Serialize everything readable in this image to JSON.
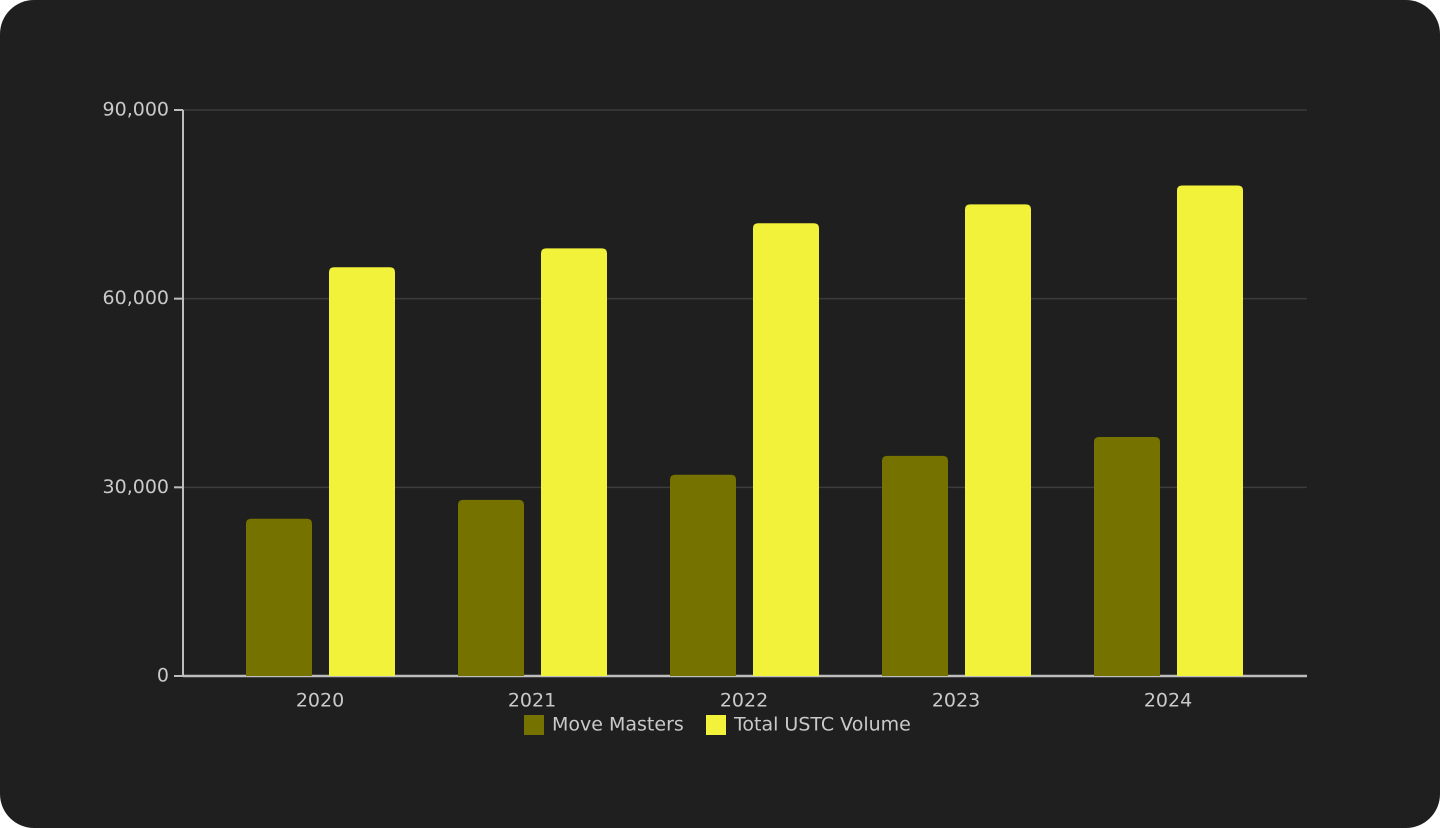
{
  "chart_data": {
    "type": "bar",
    "categories": [
      "2020",
      "2021",
      "2022",
      "2023",
      "2024"
    ],
    "series": [
      {
        "name": "Move Masters",
        "color": "#757200",
        "values": [
          25000,
          28000,
          32000,
          35000,
          38000
        ]
      },
      {
        "name": "Total USTC Volume",
        "color": "#f2f23a",
        "values": [
          65000,
          68000,
          72000,
          75000,
          78000
        ]
      }
    ],
    "ylim": [
      0,
      90000
    ],
    "yticks": [
      0,
      {
        "value": 30000,
        "label": "30,000"
      },
      {
        "value": 60000,
        "label": "60,000"
      },
      {
        "value": 90000,
        "label": "90,000"
      }
    ],
    "grid": true
  }
}
